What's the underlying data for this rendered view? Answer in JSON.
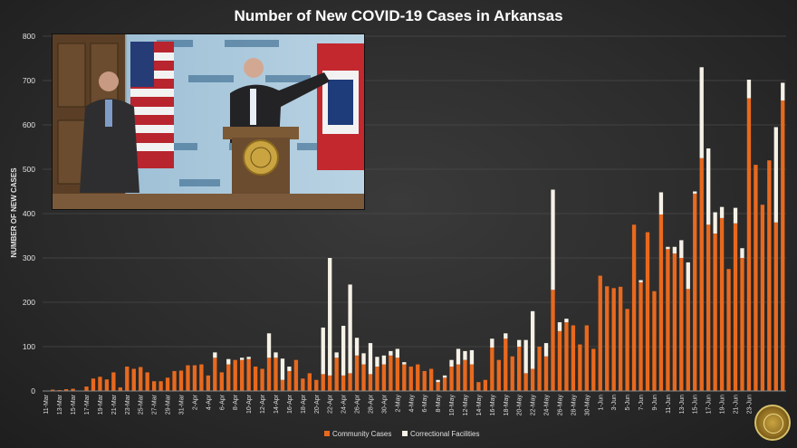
{
  "chart_data": {
    "type": "bar",
    "stacked": true,
    "title": "Number of New COVID-19 Cases in Arkansas",
    "ylabel": "NUMBER OF NEW CASES",
    "xlabel": "",
    "ylim": [
      0,
      800
    ],
    "yticks": [
      0,
      100,
      200,
      300,
      400,
      500,
      600,
      700,
      800
    ],
    "grid": true,
    "legend_position": "bottom",
    "tick_labels": [
      "11-Mar",
      "13-Mar",
      "15-Mar",
      "17-Mar",
      "19-Mar",
      "21-Mar",
      "23-Mar",
      "25-Mar",
      "27-Mar",
      "29-Mar",
      "31-Mar",
      "2-Apr",
      "4-Apr",
      "6-Apr",
      "8-Apr",
      "10-Apr",
      "12-Apr",
      "14-Apr",
      "16-Apr",
      "18-Apr",
      "20-Apr",
      "22-Apr",
      "24-Apr",
      "26-Apr",
      "28-Apr",
      "30-Apr",
      "2-May",
      "4-May",
      "6-May",
      "8-May",
      "10-May",
      "12-May",
      "14-May",
      "16-May",
      "18-May",
      "20-May",
      "22-May",
      "24-May",
      "26-May",
      "28-May",
      "30-May",
      "1-Jun",
      "3-Jun",
      "5-Jun",
      "7-Jun",
      "9-Jun",
      "11-Jun",
      "13-Jun",
      "15-Jun",
      "17-Jun",
      "19-Jun",
      "21-Jun",
      "23-Jun"
    ],
    "series": [
      {
        "name": "Community Cases",
        "color": "#e8691e",
        "values": [
          1,
          3,
          2,
          4,
          5,
          1,
          10,
          28,
          32,
          26,
          42,
          8,
          55,
          50,
          54,
          42,
          22,
          22,
          30,
          45,
          46,
          58,
          58,
          60,
          35,
          75,
          42,
          60,
          70,
          70,
          72,
          55,
          50,
          75,
          75,
          25,
          45,
          70,
          28,
          40,
          25,
          38,
          35,
          75,
          35,
          40,
          80,
          60,
          38,
          55,
          60,
          80,
          75,
          60,
          55,
          60,
          45,
          50,
          20,
          30,
          55,
          60,
          70,
          60,
          20,
          25,
          98,
          70,
          118,
          78,
          100,
          40,
          50,
          100,
          78,
          228,
          135,
          155,
          148,
          105,
          148,
          95,
          260,
          236,
          232,
          235,
          185,
          375,
          245,
          358,
          225,
          398,
          320,
          310,
          300,
          230,
          445,
          525,
          375,
          355,
          390,
          275,
          378,
          300,
          660,
          510,
          420,
          520,
          380,
          655
        ]
      },
      {
        "name": "Correctional Facilities",
        "color": "#f5f1e6",
        "values": [
          0,
          0,
          0,
          0,
          0,
          0,
          0,
          0,
          0,
          0,
          0,
          0,
          0,
          0,
          0,
          0,
          0,
          0,
          0,
          0,
          0,
          0,
          0,
          0,
          0,
          12,
          0,
          12,
          0,
          5,
          5,
          0,
          0,
          55,
          12,
          48,
          10,
          0,
          0,
          0,
          0,
          105,
          265,
          12,
          112,
          200,
          40,
          25,
          70,
          22,
          20,
          10,
          20,
          5,
          0,
          0,
          0,
          0,
          5,
          5,
          15,
          35,
          20,
          32,
          0,
          0,
          20,
          0,
          12,
          0,
          15,
          75,
          130,
          0,
          30,
          226,
          20,
          8,
          0,
          0,
          0,
          0,
          0,
          0,
          0,
          0,
          0,
          0,
          5,
          0,
          0,
          50,
          5,
          15,
          40,
          60,
          5,
          205,
          172,
          48,
          25,
          0,
          35,
          22,
          42,
          0,
          0,
          0,
          215,
          40
        ]
      }
    ],
    "legend": [
      "Community Cases",
      "Correctional Facilities"
    ]
  }
}
